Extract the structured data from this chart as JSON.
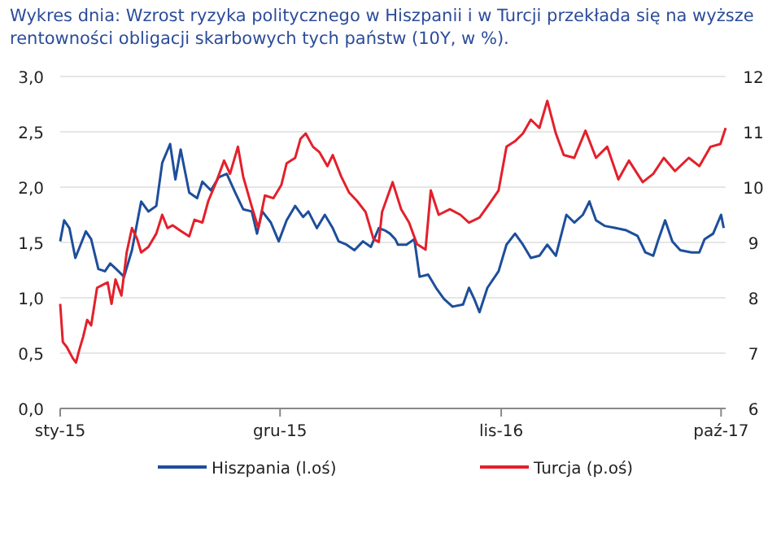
{
  "chart_data": {
    "type": "line",
    "title": "Wykres dnia: Wzrost ryzyka politycznego w Hiszpanii i w Turcji przekłada się na wyższe rentowności obligacji skarbowych tych państw (10Y, w %).",
    "xlim": [
      "2015-01-01",
      "2017-10-08"
    ],
    "xticks": [
      {
        "value": "2015-01-01",
        "label": "sty-15"
      },
      {
        "value": "2015-12-01",
        "label": "gru-15"
      },
      {
        "value": "2016-11-01",
        "label": "lis-16"
      },
      {
        "value": "2017-10-01",
        "label": "paź-17"
      }
    ],
    "ylim": [
      0,
      3
    ],
    "yticks": [
      {
        "value": 0,
        "label": "0,0"
      },
      {
        "value": 0.5,
        "label": "0,5"
      },
      {
        "value": 1,
        "label": "1,0"
      },
      {
        "value": 1.5,
        "label": "1,5"
      },
      {
        "value": 2,
        "label": "2,0"
      },
      {
        "value": 2.5,
        "label": "2,5"
      },
      {
        "value": 3,
        "label": "3,0"
      }
    ],
    "y2lim": [
      6,
      12
    ],
    "y2ticks": [
      6,
      7,
      8,
      9,
      10,
      11,
      12
    ],
    "grid": "y",
    "legend": "bottom",
    "line_style": "solid",
    "marker": "none",
    "series": [
      {
        "name": "Hiszpania (l.oś)",
        "color": "#1d4e9b",
        "x": [
          "2015-01-01",
          "2015-01-07",
          "2015-01-15",
          "2015-01-24",
          "2015-02-01",
          "2015-02-09",
          "2015-02-17",
          "2015-02-28",
          "2015-03-10",
          "2015-03-18",
          "2015-03-27",
          "2015-04-08",
          "2015-04-20",
          "2015-05-04",
          "2015-05-15",
          "2015-05-27",
          "2015-06-05",
          "2015-06-17",
          "2015-06-25",
          "2015-07-03",
          "2015-07-16",
          "2015-07-28",
          "2015-08-05",
          "2015-08-18",
          "2015-08-30",
          "2015-09-11",
          "2015-09-24",
          "2015-10-06",
          "2015-10-19",
          "2015-10-27",
          "2015-11-04",
          "2015-11-17",
          "2015-11-29",
          "2015-12-11",
          "2015-12-24",
          "2016-01-05",
          "2016-01-13",
          "2016-01-26",
          "2016-02-07",
          "2016-02-19",
          "2016-02-28",
          "2016-03-11",
          "2016-03-23",
          "2016-04-05",
          "2016-04-17",
          "2016-04-29",
          "2016-05-08",
          "2016-05-16",
          "2016-05-24",
          "2016-05-28",
          "2016-06-10",
          "2016-06-22",
          "2016-06-30",
          "2016-07-13",
          "2016-07-25",
          "2016-08-06",
          "2016-08-19",
          "2016-09-04",
          "2016-09-13",
          "2016-09-21",
          "2016-09-29",
          "2016-10-11",
          "2016-10-28",
          "2016-11-09",
          "2016-11-22",
          "2016-12-04",
          "2016-12-16",
          "2016-12-29",
          "2017-01-10",
          "2017-01-23",
          "2017-02-08",
          "2017-02-20",
          "2017-03-05",
          "2017-03-15",
          "2017-03-25",
          "2017-04-07",
          "2017-04-24",
          "2017-05-10",
          "2017-05-27",
          "2017-06-08",
          "2017-06-20",
          "2017-06-28",
          "2017-07-08",
          "2017-07-19",
          "2017-07-31",
          "2017-08-17",
          "2017-08-29",
          "2017-09-06",
          "2017-09-19",
          "2017-10-01",
          "2017-10-05"
        ],
        "values": [
          1.51,
          1.7,
          1.63,
          1.36,
          1.48,
          1.6,
          1.53,
          1.26,
          1.24,
          1.31,
          1.26,
          1.19,
          1.43,
          1.87,
          1.78,
          1.83,
          2.22,
          2.39,
          2.07,
          2.34,
          1.95,
          1.9,
          2.05,
          1.97,
          2.09,
          2.12,
          1.95,
          1.8,
          1.78,
          1.58,
          1.78,
          1.68,
          1.51,
          1.7,
          1.83,
          1.73,
          1.78,
          1.63,
          1.75,
          1.63,
          1.51,
          1.48,
          1.43,
          1.51,
          1.46,
          1.63,
          1.61,
          1.58,
          1.53,
          1.48,
          1.48,
          1.53,
          1.19,
          1.21,
          1.09,
          0.99,
          0.92,
          0.94,
          1.09,
          0.99,
          0.87,
          1.09,
          1.24,
          1.48,
          1.58,
          1.48,
          1.36,
          1.38,
          1.48,
          1.38,
          1.75,
          1.68,
          1.75,
          1.87,
          1.7,
          1.65,
          1.63,
          1.61,
          1.56,
          1.41,
          1.38,
          1.53,
          1.7,
          1.51,
          1.43,
          1.41,
          1.41,
          1.53,
          1.58,
          1.75,
          1.63
        ]
      },
      {
        "name": "Turcja (p.oś)",
        "color": "#e3202b",
        "axis": "y2",
        "x": [
          "2015-01-01",
          "2015-01-05",
          "2015-01-11",
          "2015-01-20",
          "2015-01-25",
          "2015-01-30",
          "2015-02-05",
          "2015-02-11",
          "2015-02-17",
          "2015-02-26",
          "2015-03-06",
          "2015-03-14",
          "2015-03-20",
          "2015-03-26",
          "2015-04-04",
          "2015-04-12",
          "2015-04-20",
          "2015-04-28",
          "2015-05-04",
          "2015-05-15",
          "2015-05-27",
          "2015-06-05",
          "2015-06-13",
          "2015-06-21",
          "2015-07-03",
          "2015-07-16",
          "2015-07-24",
          "2015-08-05",
          "2015-08-14",
          "2015-08-26",
          "2015-09-07",
          "2015-09-16",
          "2015-09-28",
          "2015-10-06",
          "2015-10-19",
          "2015-10-29",
          "2015-11-08",
          "2015-11-21",
          "2015-12-03",
          "2015-12-11",
          "2015-12-24",
          "2016-01-01",
          "2016-01-09",
          "2016-01-20",
          "2016-01-30",
          "2016-02-11",
          "2016-02-19",
          "2016-03-03",
          "2016-03-15",
          "2016-03-27",
          "2016-04-09",
          "2016-04-21",
          "2016-04-29",
          "2016-05-04",
          "2016-05-20",
          "2016-06-02",
          "2016-06-14",
          "2016-06-26",
          "2016-07-09",
          "2016-07-17",
          "2016-07-29",
          "2016-08-15",
          "2016-08-31",
          "2016-09-13",
          "2016-09-29",
          "2016-10-11",
          "2016-10-28",
          "2016-11-09",
          "2016-11-22",
          "2016-12-04",
          "2016-12-16",
          "2016-12-29",
          "2017-01-10",
          "2017-01-23",
          "2017-02-04",
          "2017-02-20",
          "2017-03-09",
          "2017-03-25",
          "2017-04-11",
          "2017-04-28",
          "2017-05-14",
          "2017-06-04",
          "2017-06-20",
          "2017-07-06",
          "2017-07-23",
          "2017-08-13",
          "2017-08-29",
          "2017-09-15",
          "2017-09-30",
          "2017-10-08"
        ],
        "values": [
          7.89,
          7.2,
          7.11,
          6.91,
          6.83,
          7.06,
          7.3,
          7.6,
          7.5,
          8.18,
          8.23,
          8.28,
          7.89,
          8.33,
          8.04,
          8.82,
          9.26,
          9.06,
          8.82,
          8.92,
          9.16,
          9.5,
          9.26,
          9.31,
          9.21,
          9.11,
          9.41,
          9.36,
          9.75,
          10.09,
          10.48,
          10.24,
          10.73,
          10.19,
          9.65,
          9.26,
          9.85,
          9.8,
          10.04,
          10.43,
          10.53,
          10.87,
          10.97,
          10.73,
          10.63,
          10.38,
          10.58,
          10.19,
          9.9,
          9.75,
          9.55,
          9.06,
          9.01,
          9.55,
          10.09,
          9.6,
          9.36,
          8.97,
          8.87,
          9.94,
          9.5,
          9.6,
          9.5,
          9.36,
          9.45,
          9.65,
          9.94,
          10.73,
          10.83,
          10.97,
          11.22,
          11.07,
          11.56,
          10.97,
          10.58,
          10.53,
          11.02,
          10.53,
          10.73,
          10.14,
          10.48,
          10.09,
          10.24,
          10.53,
          10.29,
          10.53,
          10.38,
          10.73,
          10.78,
          11.07
        ]
      }
    ]
  }
}
